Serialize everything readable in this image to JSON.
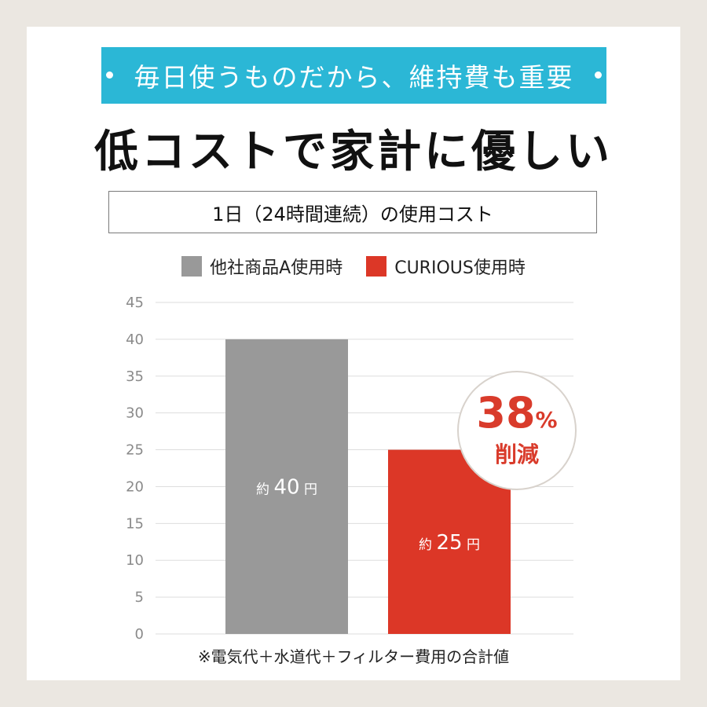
{
  "banner_text": "毎日使うものだから、維持費も重要",
  "headline": "低コストで家計に優しい",
  "colors": {
    "background": "#ebe7e1",
    "banner": "#2bb7d6",
    "series_other": "#999999",
    "series_curious": "#dc3727",
    "badge_text": "#d93b2b",
    "grid": "#dddddd"
  },
  "badge": {
    "number": "38",
    "percent_sign": "%",
    "label": "削減"
  },
  "footnote": "※電気代＋水道代＋フィルター費用の合計値",
  "chart_data": {
    "type": "bar",
    "title": "1日（24時間連続）の使用コスト",
    "xlabel": "",
    "ylabel": "",
    "ylim": [
      0,
      45
    ],
    "yticks": [
      0,
      5,
      10,
      15,
      20,
      25,
      30,
      35,
      40,
      45
    ],
    "grid": true,
    "legend_position": "top-center",
    "series": [
      {
        "name": "他社商品A使用時",
        "values": [
          40
        ],
        "color": "#999999",
        "data_label": {
          "prefix": "約",
          "number": "40",
          "unit": "円"
        }
      },
      {
        "name": "CURIOUS使用時",
        "values": [
          25
        ],
        "color": "#dc3727",
        "data_label": {
          "prefix": "約",
          "number": "25",
          "unit": "円"
        }
      }
    ]
  }
}
